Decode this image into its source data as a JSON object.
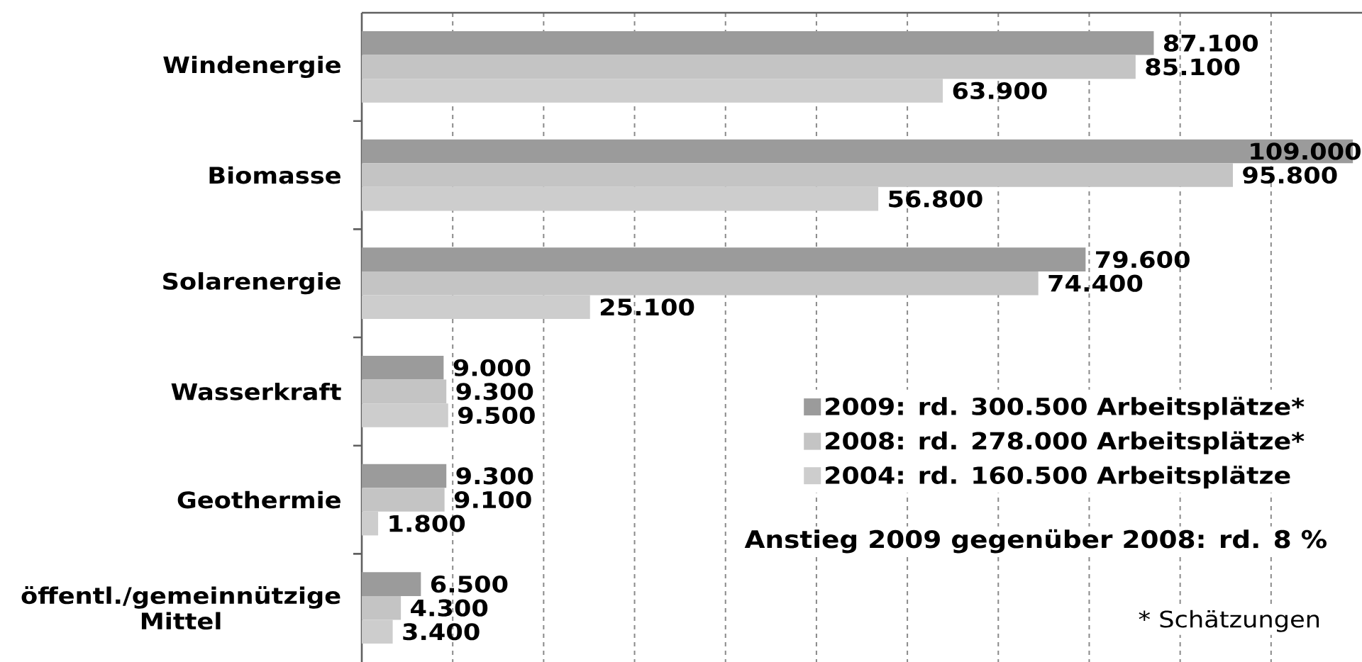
{
  "chart_data": {
    "type": "bar",
    "orientation": "horizontal",
    "categories": [
      "Windenergie",
      "Biomasse",
      "Solarenergie",
      "Wasserkraft",
      "Geothermie",
      "öffentl./gemeinnützige Mittel"
    ],
    "series": [
      {
        "name": "2009: rd. 300.500 Arbeitsplätze*",
        "color": "#9b9b9b",
        "values": [
          87100,
          109000,
          79600,
          9000,
          9300,
          6500
        ],
        "value_labels": [
          "87.100",
          "109.000",
          "79.600",
          "9.000",
          "9.300",
          "6.500"
        ]
      },
      {
        "name": "2008: rd. 278.000 Arbeitsplätze*",
        "color": "#c4c4c4",
        "values": [
          85100,
          95800,
          74400,
          9300,
          9100,
          4300
        ],
        "value_labels": [
          "85.100",
          "95.800",
          "74.400",
          "9.300",
          "9.100",
          "4.300"
        ]
      },
      {
        "name": "2004: rd. 160.500 Arbeitsplätze",
        "color": "#cdcdcd",
        "values": [
          63900,
          56800,
          25100,
          9500,
          1800,
          3400
        ],
        "value_labels": [
          "63.900",
          "56.800",
          "25.100",
          "9.500",
          "1.800",
          "3.400"
        ]
      }
    ],
    "xlim": [
      0,
      110000
    ],
    "xticks": [
      {
        "value": 10000,
        "label": null
      },
      {
        "value": 20000,
        "label": null
      },
      {
        "value": 30000,
        "label": null
      },
      {
        "value": 40000,
        "label": null
      },
      {
        "value": 50000,
        "label": null
      },
      {
        "value": 60000,
        "label": null
      },
      {
        "value": 70000,
        "label": null
      },
      {
        "value": 80000,
        "label": null
      },
      {
        "value": 90000,
        "label": null
      },
      {
        "value": 100000,
        "label": null
      }
    ],
    "grid": "x",
    "legend": "bottom right",
    "tick_labels": "y",
    "annotations": [
      "Anstieg 2009 gegenüber 2008: rd. 8 %",
      "* Schätzungen"
    ]
  }
}
